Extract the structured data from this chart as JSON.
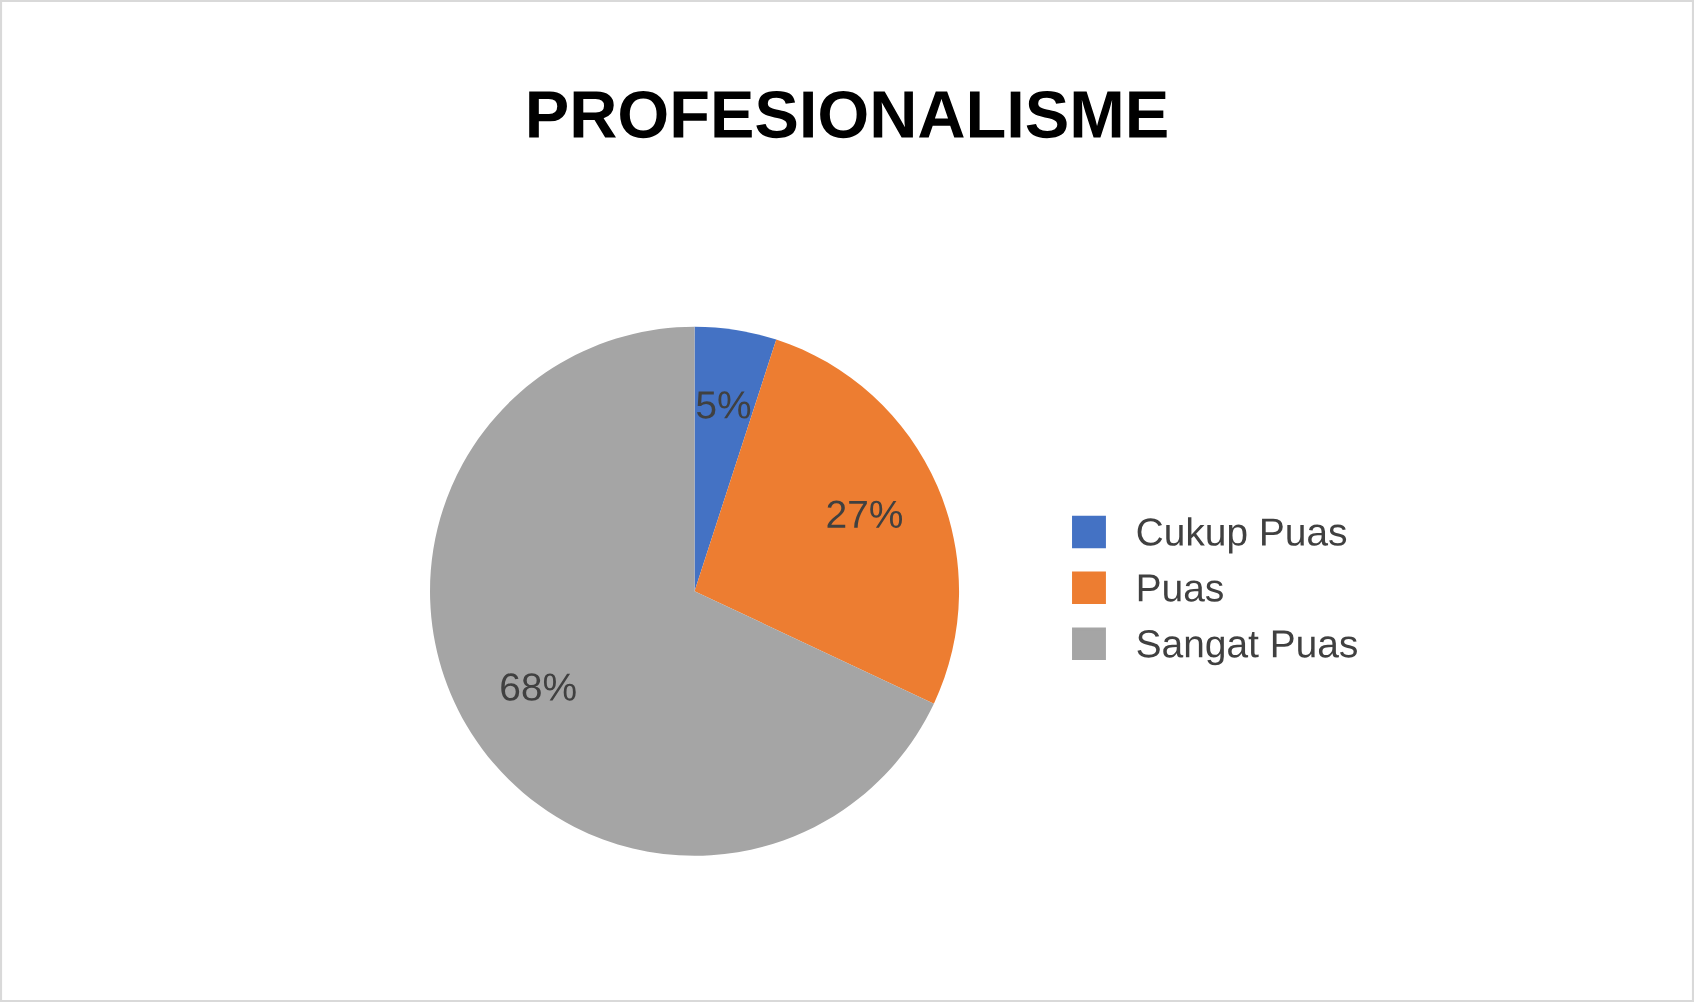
{
  "chart_data": {
    "type": "pie",
    "title": "PROFESIONALISME",
    "categories": [
      "Cukup Puas",
      "Puas",
      "Sangat Puas"
    ],
    "values": [
      5,
      27,
      68
    ],
    "colors": [
      "#4472c4",
      "#ed7d31",
      "#a5a5a5"
    ],
    "value_labels": [
      "5%",
      "27%",
      "68%"
    ],
    "legend": "right"
  }
}
